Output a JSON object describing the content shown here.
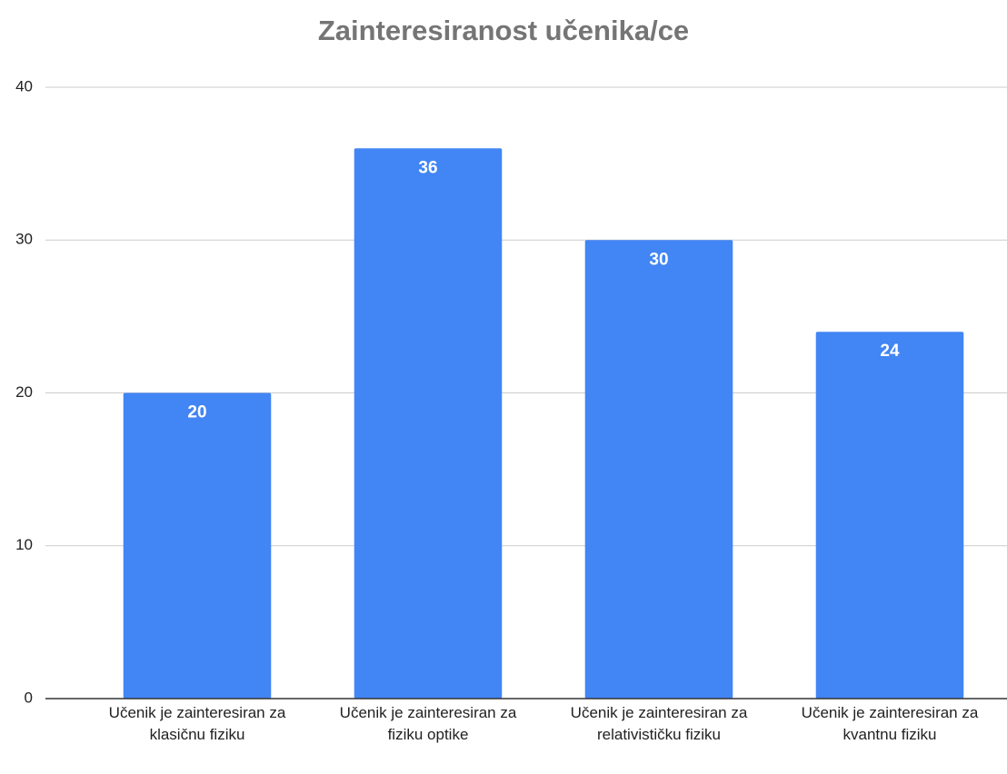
{
  "chart_data": {
    "type": "bar",
    "title": "Zainteresiranost učenika/ce",
    "categories": [
      "Učenik je zainteresiran za klasičnu fiziku",
      "Učenik je zainteresiran za fiziku optike",
      "Učenik je zainteresiran za relativističku fiziku",
      "Učenik je zainteresiran za kvantnu fiziku"
    ],
    "values": [
      20,
      36,
      30,
      24
    ],
    "color": "#4285f4",
    "ylim": [
      0,
      40
    ],
    "yticks": [
      0,
      10,
      20,
      30,
      40
    ],
    "grid": true
  }
}
